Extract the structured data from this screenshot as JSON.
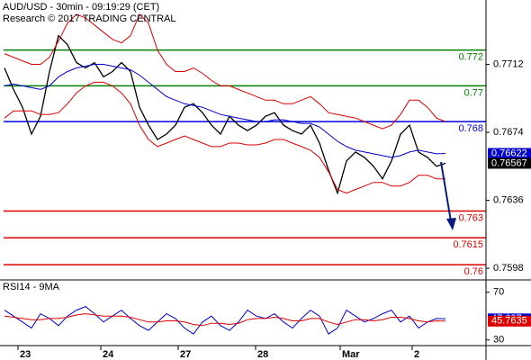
{
  "chart_data": [
    {
      "type": "line",
      "title": "AUD/USD - 30min - 09:19:29 (CET)",
      "subtitle": "Research © 2017 TRADING CENTRAL",
      "x": [
        0,
        1,
        2,
        3,
        4,
        5,
        6,
        7,
        8,
        9,
        10,
        11,
        12,
        13,
        14,
        15,
        16,
        17,
        18,
        19,
        20,
        21,
        22,
        23,
        24,
        25,
        26,
        27,
        28,
        29,
        30,
        31,
        32,
        33,
        34,
        35,
        36,
        37,
        38,
        39,
        40,
        41,
        42,
        43,
        44,
        45,
        46,
        47,
        48,
        49
      ],
      "xlim": [
        -0.5,
        53.5
      ],
      "xticks": [
        {
          "value": 1.5,
          "label": "23"
        },
        {
          "value": 10.7,
          "label": "24"
        },
        {
          "value": 19.3,
          "label": "27"
        },
        {
          "value": 27.9,
          "label": "28"
        },
        {
          "value": 37.3,
          "label": "Mar"
        },
        {
          "value": 45.3,
          "label": "2"
        }
      ],
      "ylim": [
        0.7592,
        0.7748
      ],
      "yticks": [
        0.7712,
        0.7674,
        0.7636,
        0.7598
      ],
      "series": [
        {
          "color": "#000000",
          "values": [
            0.771,
            0.7698,
            0.7688,
            0.7673,
            0.7683,
            0.7708,
            0.7728,
            0.7723,
            0.7713,
            0.771,
            0.7713,
            0.7705,
            0.7708,
            0.7713,
            0.7708,
            0.7688,
            0.7678,
            0.767,
            0.7673,
            0.7678,
            0.7688,
            0.769,
            0.7685,
            0.7678,
            0.7673,
            0.7683,
            0.7678,
            0.7675,
            0.7678,
            0.7683,
            0.7685,
            0.7678,
            0.7675,
            0.7673,
            0.7678,
            0.7668,
            0.7653,
            0.764,
            0.7658,
            0.7663,
            0.766,
            0.7655,
            0.7648,
            0.7658,
            0.7673,
            0.7678,
            0.7663,
            0.766,
            0.7655,
            0.76567
          ]
        },
        {
          "color": "#0000cc",
          "values": [
            0.77,
            0.7701,
            0.77,
            0.7699,
            0.7698,
            0.77,
            0.7705,
            0.7708,
            0.771,
            0.7711,
            0.7712,
            0.7712,
            0.7711,
            0.771,
            0.7709,
            0.7706,
            0.7702,
            0.7698,
            0.7694,
            0.7692,
            0.769,
            0.7689,
            0.7688,
            0.7686,
            0.7684,
            0.7683,
            0.7682,
            0.7681,
            0.768,
            0.768,
            0.7681,
            0.7681,
            0.768,
            0.7679,
            0.7679,
            0.7677,
            0.7673,
            0.7669,
            0.7666,
            0.7664,
            0.7663,
            0.7662,
            0.7661,
            0.766,
            0.7661,
            0.7663,
            0.7664,
            0.7663,
            0.7662,
            0.76622
          ]
        },
        {
          "color": "#dd0000",
          "values": [
            0.7718,
            0.7716,
            0.7714,
            0.7712,
            0.7712,
            0.7716,
            0.7725,
            0.7735,
            0.774,
            0.7738,
            0.7734,
            0.773,
            0.7726,
            0.7724,
            0.7728,
            0.774,
            0.7735,
            0.772,
            0.7712,
            0.7708,
            0.7708,
            0.771,
            0.7707,
            0.7703,
            0.77,
            0.77,
            0.7698,
            0.7696,
            0.7694,
            0.7692,
            0.7692,
            0.769,
            0.769,
            0.7692,
            0.7694,
            0.769,
            0.7685,
            0.7684,
            0.7683,
            0.7682,
            0.768,
            0.7678,
            0.7676,
            0.7678,
            0.7684,
            0.7692,
            0.7692,
            0.7688,
            0.7682,
            0.768
          ]
        },
        {
          "color": "#dd0000",
          "values": [
            0.7682,
            0.7686,
            0.7686,
            0.7686,
            0.7684,
            0.7684,
            0.7685,
            0.769,
            0.7696,
            0.77,
            0.7702,
            0.7702,
            0.77,
            0.7696,
            0.769,
            0.7678,
            0.767,
            0.7666,
            0.7668,
            0.767,
            0.7672,
            0.767,
            0.7668,
            0.7666,
            0.7666,
            0.7668,
            0.7668,
            0.7667,
            0.7667,
            0.7668,
            0.767,
            0.767,
            0.7668,
            0.7666,
            0.7664,
            0.766,
            0.7652,
            0.7642,
            0.764,
            0.7642,
            0.7644,
            0.7646,
            0.7646,
            0.7644,
            0.7644,
            0.7646,
            0.765,
            0.765,
            0.7648,
            0.7648
          ]
        }
      ],
      "levels": [
        {
          "value": 0.772,
          "color": "#008000"
        },
        {
          "value": 0.77,
          "color": "#008000"
        },
        {
          "value": 0.768,
          "color": "#0000dd"
        },
        {
          "value": 0.763,
          "color": "#dd0000"
        },
        {
          "value": 0.7615,
          "color": "#dd0000"
        },
        {
          "value": 0.76,
          "color": "#dd0000"
        }
      ],
      "tags": [
        {
          "value": 0.76586,
          "color": "#e00000"
        }
      ]
    },
    {
      "type": "line",
      "title": "RSI14 - 9MA",
      "ylim": [
        26,
        79.6
      ],
      "yticks": [
        70,
        30
      ],
      "series": [
        {
          "color": "#0000cc",
          "values": [
            55,
            50,
            45,
            40,
            52,
            48,
            42,
            50,
            55,
            58,
            52,
            45,
            50,
            55,
            48,
            42,
            38,
            45,
            52,
            48,
            40,
            35,
            45,
            50,
            42,
            38,
            45,
            55,
            50,
            48,
            52,
            45,
            40,
            48,
            55,
            50,
            35,
            40,
            55,
            50,
            45,
            48,
            52,
            55,
            45,
            50,
            40,
            45,
            48,
            47.637
          ]
        },
        {
          "color": "#dd0000",
          "values": [
            50,
            49,
            48,
            47,
            47,
            48,
            48,
            49,
            51,
            52,
            51,
            50,
            50,
            50,
            49,
            47,
            45,
            45,
            46,
            46,
            45,
            43,
            42,
            44,
            44,
            43,
            44,
            47,
            48,
            48,
            49,
            48,
            46,
            46,
            48,
            48,
            45,
            43,
            45,
            47,
            47,
            46,
            47,
            49,
            49,
            48,
            46,
            45,
            46,
            45.7635
          ]
        }
      ]
    }
  ]
}
